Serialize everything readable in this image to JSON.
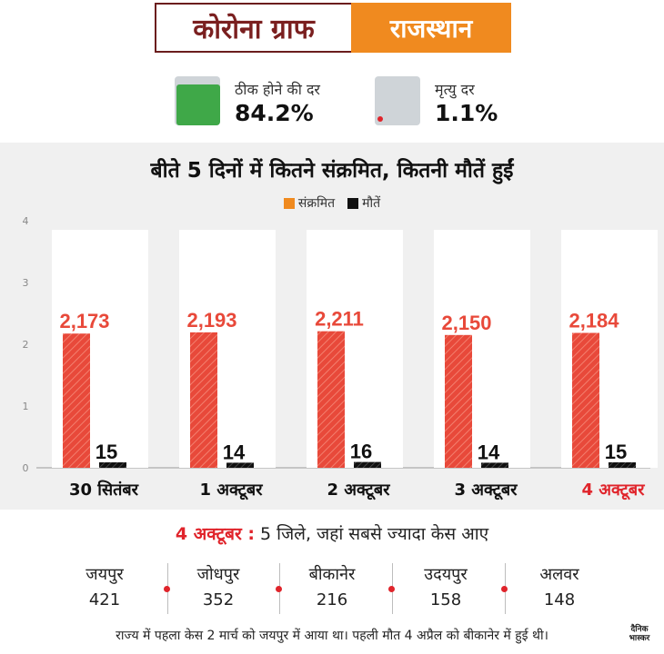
{
  "header": {
    "title": "कोरोना ग्राफ",
    "region": "राजस्थान"
  },
  "rates": {
    "recovery": {
      "label": "ठीक होने की दर",
      "value": "84.2%",
      "fraction": 0.842
    },
    "death": {
      "label": "मृत्यु दर",
      "value": "1.1%",
      "fraction": 0.011
    }
  },
  "colors": {
    "infected": "#e8493a",
    "deaths": "#111111",
    "highlight": "#e0242b",
    "brand_orange": "#f08a1f"
  },
  "chart_data": {
    "type": "bar",
    "title": "बीते 5 दिनों में कितने संक्रमित, कितनी मौतें हुईं",
    "categories": [
      "30 सितंबर",
      "1 अक्टूबर",
      "2 अक्टूबर",
      "3 अक्टूबर",
      "4 अक्टूबर"
    ],
    "highlight_category": "4 अक्टूबर",
    "series": [
      {
        "name": "संक्रमित",
        "values": [
          2173,
          2193,
          2211,
          2150,
          2184
        ],
        "labels": [
          "2,173",
          "2,193",
          "2,211",
          "2,150",
          "2,184"
        ]
      },
      {
        "name": "मौतें",
        "values": [
          15,
          14,
          16,
          14,
          15
        ],
        "labels": [
          "15",
          "14",
          "16",
          "14",
          "15"
        ]
      }
    ],
    "yticks": [
      "0",
      "1",
      "2",
      "3",
      "4"
    ],
    "grid": false,
    "legend": "top-center"
  },
  "districts": {
    "title_date": "4 अक्टूबर :",
    "title_rest": " 5 जिले, जहां सबसे ज्यादा केस आए",
    "items": [
      {
        "name": "जयपुर",
        "count": "421"
      },
      {
        "name": "जोधपुर",
        "count": "352"
      },
      {
        "name": "बीकानेर",
        "count": "216"
      },
      {
        "name": "उदयपुर",
        "count": "158"
      },
      {
        "name": "अलवर",
        "count": "148"
      }
    ]
  },
  "footer": "राज्य में पहला केस 2 मार्च को जयपुर में आया था। पहली मौत 4 अप्रैल को बीकानेर में हुई थी।",
  "logo": {
    "line1": "दैनिक",
    "line2": "भास्कर"
  }
}
